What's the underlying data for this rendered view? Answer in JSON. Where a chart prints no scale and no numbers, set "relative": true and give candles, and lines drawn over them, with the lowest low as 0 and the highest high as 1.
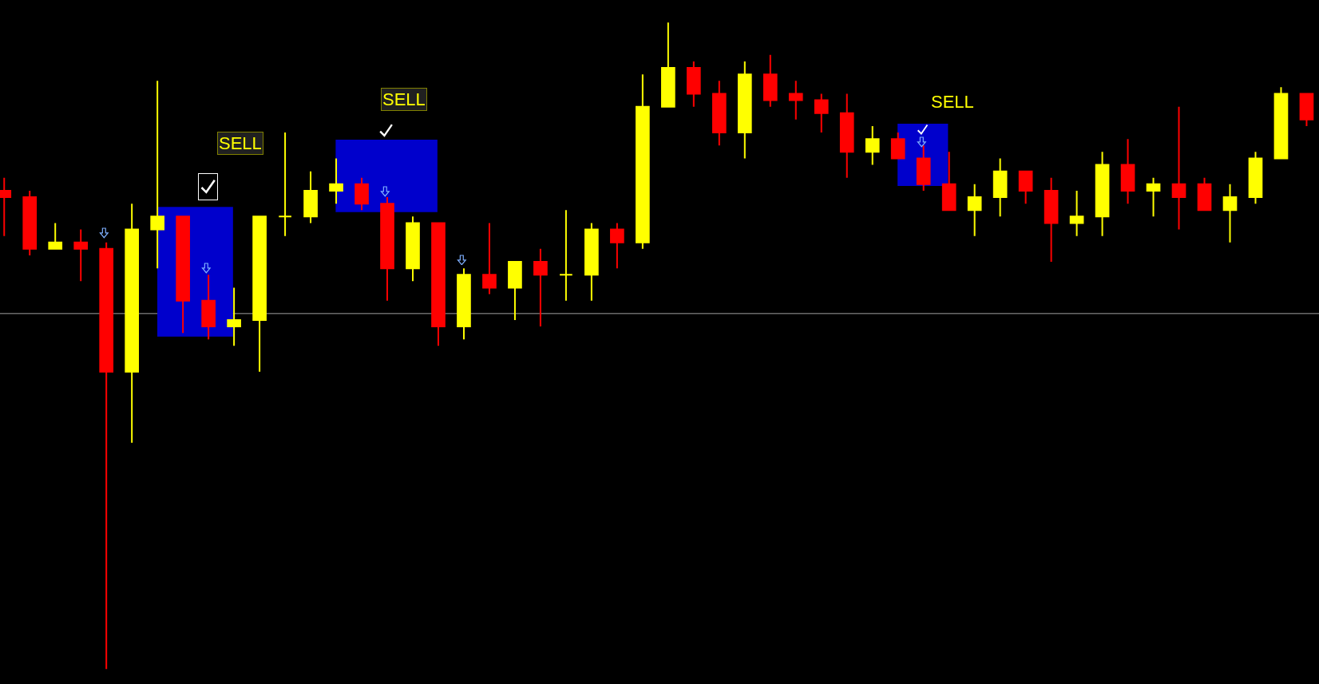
{
  "chart_data": {
    "type": "candlestick",
    "relative": true,
    "categories": [
      null,
      null,
      null,
      null,
      null,
      null,
      null,
      null,
      null,
      null,
      null,
      null,
      null,
      null,
      null,
      null,
      null,
      null,
      null,
      null,
      null,
      null,
      null,
      null,
      null,
      null,
      null,
      null,
      null,
      null,
      null,
      null,
      null,
      null,
      null,
      null,
      null,
      null,
      null,
      null,
      null,
      null,
      null,
      null,
      null,
      null,
      null,
      null,
      null,
      null,
      null,
      null
    ],
    "ohlc": [
      [
        0.74,
        0.76,
        0.67,
        0.73
      ],
      [
        0.73,
        0.74,
        0.64,
        0.65
      ],
      [
        0.65,
        0.69,
        0.65,
        0.66
      ],
      [
        0.66,
        0.68,
        0.6,
        0.65
      ],
      [
        0.65,
        0.66,
        0,
        0.46
      ],
      [
        0.46,
        0.72,
        0.35,
        0.68
      ],
      [
        0.68,
        0.91,
        0.62,
        0.7
      ],
      [
        0.7,
        0.7,
        0.52,
        0.57
      ],
      [
        0.57,
        0.61,
        0.51,
        0.53
      ],
      [
        0.53,
        0.59,
        0.5,
        0.54
      ],
      [
        0.54,
        0.7,
        0.46,
        0.7
      ],
      [
        0.7,
        0.83,
        0.67,
        0.7
      ],
      [
        0.7,
        0.77,
        0.69,
        0.74
      ],
      [
        0.74,
        0.79,
        0.72,
        0.75
      ],
      [
        0.75,
        0.76,
        0.71,
        0.72
      ],
      [
        0.72,
        0.73,
        0.57,
        0.62
      ],
      [
        0.62,
        0.7,
        0.6,
        0.69
      ],
      [
        0.69,
        0.69,
        0.5,
        0.53
      ],
      [
        0.53,
        0.62,
        0.51,
        0.61
      ],
      [
        0.61,
        0.69,
        0.58,
        0.59
      ],
      [
        0.59,
        0.63,
        0.54,
        0.63
      ],
      [
        0.63,
        0.65,
        0.53,
        0.61
      ],
      [
        0.61,
        0.71,
        0.57,
        0.61
      ],
      [
        0.61,
        0.69,
        0.57,
        0.68
      ],
      [
        0.68,
        0.69,
        0.62,
        0.66
      ],
      [
        0.66,
        0.92,
        0.65,
        0.87
      ],
      [
        0.87,
        1,
        0.87,
        0.93
      ],
      [
        0.93,
        0.94,
        0.87,
        0.89
      ],
      [
        0.89,
        0.91,
        0.81,
        0.83
      ],
      [
        0.83,
        0.94,
        0.79,
        0.92
      ],
      [
        0.92,
        0.95,
        0.87,
        0.88
      ],
      [
        0.89,
        0.91,
        0.85,
        0.88
      ],
      [
        0.88,
        0.89,
        0.83,
        0.86
      ],
      [
        0.86,
        0.89,
        0.76,
        0.8
      ],
      [
        0.8,
        0.84,
        0.78,
        0.82
      ],
      [
        0.82,
        0.83,
        0.79,
        0.79
      ],
      [
        0.79,
        0.81,
        0.74,
        0.75
      ],
      [
        0.75,
        0.8,
        0.71,
        0.71
      ],
      [
        0.71,
        0.75,
        0.67,
        0.73
      ],
      [
        0.73,
        0.79,
        0.7,
        0.77
      ],
      [
        0.77,
        0.77,
        0.72,
        0.74
      ],
      [
        0.74,
        0.76,
        0.63,
        0.69
      ],
      [
        0.69,
        0.74,
        0.67,
        0.7
      ],
      [
        0.7,
        0.8,
        0.67,
        0.78
      ],
      [
        0.78,
        0.82,
        0.72,
        0.74
      ],
      [
        0.74,
        0.76,
        0.7,
        0.75
      ],
      [
        0.75,
        0.87,
        0.68,
        0.73
      ],
      [
        0.75,
        0.76,
        0.71,
        0.71
      ],
      [
        0.71,
        0.75,
        0.66,
        0.73
      ],
      [
        0.73,
        0.8,
        0.72,
        0.79
      ],
      [
        0.79,
        0.9,
        0.79,
        0.89
      ],
      [
        0.89,
        0.89,
        0.84,
        0.85
      ]
    ],
    "colors": [
      "#ff0000",
      "#ff0000",
      "#ffff00",
      "#ff0000",
      "#ff0000",
      "#ffff00",
      "#ffff00",
      "#ff0000",
      "#ff0000",
      "#ffff00",
      "#ffff00",
      "#ffff00",
      "#ffff00",
      "#ffff00",
      "#ff0000",
      "#ff0000",
      "#ffff00",
      "#ff0000",
      "#ffff00",
      "#ff0000",
      "#ffff00",
      "#ff0000",
      "#ffff00",
      "#ffff00",
      "#ff0000",
      "#ffff00",
      "#ffff00",
      "#ff0000",
      "#ff0000",
      "#ffff00",
      "#ff0000",
      "#ff0000",
      "#ff0000",
      "#ff0000",
      "#ffff00",
      "#ff0000",
      "#ff0000",
      "#ff0000",
      "#ffff00",
      "#ffff00",
      "#ff0000",
      "#ff0000",
      "#ffff00",
      "#ffff00",
      "#ff0000",
      "#ffff00",
      "#ff0000",
      "#ff0000",
      "#ffff00",
      "#ffff00",
      "#ffff00",
      "#ff0000"
    ],
    "ref_lines": [
      {
        "axis": "y",
        "value": 0.55,
        "color": "#a0a0a0"
      }
    ],
    "annotations": [
      "SELL",
      "SELL",
      "SELL"
    ],
    "grid": false,
    "legend": false
  }
}
